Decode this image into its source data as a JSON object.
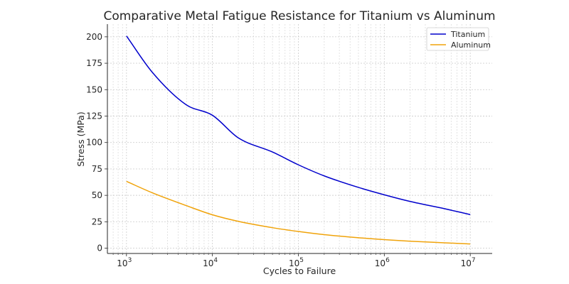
{
  "chart_data": {
    "type": "line",
    "title": "Comparative Metal Fatigue Resistance for Titanium vs Aluminum",
    "xlabel": "Cycles to Failure",
    "ylabel": "Stress (MPa)",
    "x_scale": "log",
    "xlim": [
      600,
      18000000
    ],
    "ylim": [
      -5,
      212
    ],
    "x_ticks": [
      {
        "value": 1000,
        "base": "10",
        "exp": "3"
      },
      {
        "value": 10000,
        "base": "10",
        "exp": "4"
      },
      {
        "value": 100000,
        "base": "10",
        "exp": "5"
      },
      {
        "value": 1000000,
        "base": "10",
        "exp": "6"
      },
      {
        "value": 10000000,
        "base": "10",
        "exp": "7"
      }
    ],
    "y_ticks": [
      0,
      25,
      50,
      75,
      100,
      125,
      150,
      175,
      200
    ],
    "grid": true,
    "legend_position": "top-right",
    "x": [
      1000,
      2000,
      5000,
      10000,
      20000,
      50000,
      100000,
      200000,
      500000,
      1000000,
      2000000,
      5000000,
      10000000
    ],
    "series": [
      {
        "name": "Titanium",
        "color": "#0000cc",
        "values": [
          200.8,
          166.4,
          135.5,
          125.8,
          104.4,
          91.0,
          78.9,
          68.4,
          57.5,
          50.5,
          44.2,
          37.4,
          31.8
        ]
      },
      {
        "name": "Aluminum",
        "color": "#f0a30a",
        "values": [
          63.2,
          52.4,
          40.2,
          31.6,
          25.4,
          19.4,
          15.8,
          12.8,
          9.9,
          8.1,
          6.6,
          5.1,
          4.0
        ]
      }
    ]
  }
}
